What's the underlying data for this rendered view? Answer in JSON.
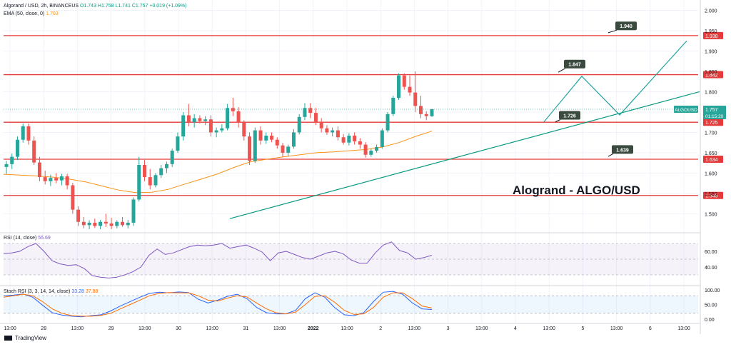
{
  "chart_data": {
    "type": "candlestick",
    "legend_main": {
      "symbol": "Algorand / USD, 2h, BINANCEUS",
      "open": "O1.743",
      "high": "H1.758",
      "low": "L1.741",
      "close": "C1.757",
      "change": "+0.019 (+1.09%)"
    },
    "legend_ema": {
      "label": "EMA (50, close, 0)",
      "value": "1.703"
    },
    "legend_rsi": {
      "label": "RSI (14, close)",
      "value": "55.69"
    },
    "legend_stoch": {
      "label": "Stoch RSI (3, 3, 14, 14, close)",
      "k": "33.28",
      "d": "37.88"
    },
    "annotation_title": "Alogrand - ALGO/USD",
    "price_axis": {
      "ylim": [
        1.455,
        2.015
      ],
      "ticks": [
        "2.000",
        "1.950",
        "1.900",
        "1.850",
        "1.800",
        "1.750",
        "1.700",
        "1.650",
        "1.600",
        "1.550",
        "1.500"
      ],
      "tick_values": [
        2.0,
        1.95,
        1.9,
        1.85,
        1.8,
        1.75,
        1.7,
        1.65,
        1.6,
        1.55,
        1.5
      ]
    },
    "horizontal_levels": [
      {
        "value": 1.938,
        "label": "1.938"
      },
      {
        "value": 1.842,
        "label": "1.842"
      },
      {
        "value": 1.725,
        "label": "1.725"
      },
      {
        "value": 1.634,
        "label": "1.634"
      },
      {
        "value": 1.545,
        "label": "1.545"
      }
    ],
    "price_callouts": [
      "1.940",
      "1.847",
      "1.726",
      "1.639"
    ],
    "current_price": {
      "symbol": "ALGOUSD",
      "value": 1.757,
      "label": "1.757",
      "countdown": "01:15:20"
    },
    "x_labels": [
      "13:00",
      "28",
      "13:00",
      "29",
      "13:00",
      "30",
      "13:00",
      "31",
      "13:00",
      "2022",
      "13:00",
      "2",
      "13:00",
      "3",
      "13:00",
      "4",
      "13:00",
      "5",
      "13:00",
      "6",
      "13:00"
    ],
    "rsi_axis": {
      "ticks": [
        "60.00",
        "40.00"
      ],
      "tick_values": [
        60,
        40
      ],
      "band": [
        70,
        30
      ]
    },
    "stoch_axis": {
      "ticks": [
        "100.00",
        "50.00",
        "0.00"
      ],
      "tick_values": [
        100,
        50,
        0
      ],
      "band": [
        80,
        20
      ]
    },
    "candles": [
      [
        1.615,
        1.63,
        1.598,
        1.622
      ],
      [
        1.622,
        1.648,
        1.61,
        1.64
      ],
      [
        1.64,
        1.69,
        1.632,
        1.682
      ],
      [
        1.682,
        1.722,
        1.675,
        1.715
      ],
      [
        1.715,
        1.722,
        1.67,
        1.68
      ],
      [
        1.68,
        1.69,
        1.62,
        1.626
      ],
      [
        1.626,
        1.64,
        1.58,
        1.59
      ],
      [
        1.59,
        1.606,
        1.572,
        1.58
      ],
      [
        1.58,
        1.596,
        1.568,
        1.588
      ],
      [
        1.588,
        1.6,
        1.575,
        1.582
      ],
      [
        1.582,
        1.598,
        1.57,
        1.592
      ],
      [
        1.592,
        1.598,
        1.56,
        1.57
      ],
      [
        1.57,
        1.576,
        1.5,
        1.51
      ],
      [
        1.51,
        1.518,
        1.47,
        1.48
      ],
      [
        1.48,
        1.492,
        1.464,
        1.472
      ],
      [
        1.472,
        1.484,
        1.462,
        1.478
      ],
      [
        1.478,
        1.488,
        1.465,
        1.47
      ],
      [
        1.47,
        1.485,
        1.462,
        1.48
      ],
      [
        1.48,
        1.5,
        1.468,
        1.476
      ],
      [
        1.476,
        1.49,
        1.462,
        1.47
      ],
      [
        1.47,
        1.484,
        1.464,
        1.48
      ],
      [
        1.48,
        1.492,
        1.468,
        1.472
      ],
      [
        1.472,
        1.485,
        1.464,
        1.478
      ],
      [
        1.478,
        1.54,
        1.47,
        1.535
      ],
      [
        1.535,
        1.64,
        1.53,
        1.62
      ],
      [
        1.62,
        1.632,
        1.58,
        1.59
      ],
      [
        1.59,
        1.61,
        1.56,
        1.57
      ],
      [
        1.57,
        1.6,
        1.565,
        1.595
      ],
      [
        1.595,
        1.62,
        1.588,
        1.612
      ],
      [
        1.612,
        1.628,
        1.6,
        1.622
      ],
      [
        1.622,
        1.66,
        1.615,
        1.655
      ],
      [
        1.655,
        1.7,
        1.65,
        1.69
      ],
      [
        1.69,
        1.75,
        1.68,
        1.742
      ],
      [
        1.742,
        1.77,
        1.715,
        1.725
      ],
      [
        1.725,
        1.745,
        1.712,
        1.735
      ],
      [
        1.735,
        1.742,
        1.722,
        1.728
      ],
      [
        1.728,
        1.74,
        1.718,
        1.732
      ],
      [
        1.732,
        1.742,
        1.69,
        1.7
      ],
      [
        1.7,
        1.712,
        1.688,
        1.705
      ],
      [
        1.705,
        1.72,
        1.7,
        1.71
      ],
      [
        1.71,
        1.77,
        1.705,
        1.76
      ],
      [
        1.76,
        1.785,
        1.74,
        1.752
      ],
      [
        1.752,
        1.762,
        1.712,
        1.725
      ],
      [
        1.725,
        1.73,
        1.68,
        1.69
      ],
      [
        1.69,
        1.7,
        1.62,
        1.63
      ],
      [
        1.63,
        1.712,
        1.625,
        1.705
      ],
      [
        1.705,
        1.715,
        1.67,
        1.68
      ],
      [
        1.68,
        1.7,
        1.672,
        1.692
      ],
      [
        1.692,
        1.7,
        1.676,
        1.682
      ],
      [
        1.682,
        1.688,
        1.66,
        1.668
      ],
      [
        1.668,
        1.674,
        1.64,
        1.65
      ],
      [
        1.65,
        1.67,
        1.642,
        1.665
      ],
      [
        1.665,
        1.708,
        1.66,
        1.7
      ],
      [
        1.7,
        1.745,
        1.695,
        1.738
      ],
      [
        1.738,
        1.772,
        1.73,
        1.76
      ],
      [
        1.76,
        1.772,
        1.735,
        1.748
      ],
      [
        1.748,
        1.76,
        1.718,
        1.725
      ],
      [
        1.725,
        1.735,
        1.7,
        1.71
      ],
      [
        1.71,
        1.718,
        1.694,
        1.7
      ],
      [
        1.7,
        1.712,
        1.69,
        1.705
      ],
      [
        1.705,
        1.715,
        1.68,
        1.688
      ],
      [
        1.688,
        1.696,
        1.67,
        1.675
      ],
      [
        1.675,
        1.698,
        1.668,
        1.692
      ],
      [
        1.692,
        1.7,
        1.67,
        1.678
      ],
      [
        1.678,
        1.686,
        1.66,
        1.67
      ],
      [
        1.67,
        1.676,
        1.638,
        1.645
      ],
      [
        1.645,
        1.66,
        1.64,
        1.655
      ],
      [
        1.655,
        1.67,
        1.65,
        1.664
      ],
      [
        1.664,
        1.71,
        1.66,
        1.705
      ],
      [
        1.705,
        1.75,
        1.7,
        1.745
      ],
      [
        1.745,
        1.79,
        1.74,
        1.785
      ],
      [
        1.785,
        1.845,
        1.78,
        1.84
      ],
      [
        1.84,
        1.845,
        1.805,
        1.812
      ],
      [
        1.812,
        1.84,
        1.79,
        1.798
      ],
      [
        1.798,
        1.85,
        1.75,
        1.765
      ],
      [
        1.765,
        1.79,
        1.735,
        1.745
      ],
      [
        1.745,
        1.752,
        1.73,
        1.74
      ],
      [
        1.74,
        1.758,
        1.738,
        1.757
      ]
    ],
    "ema50": [
      1.597,
      1.595,
      1.593,
      1.59,
      1.585,
      1.578,
      1.568,
      1.558,
      1.552,
      1.553,
      1.56,
      1.573,
      1.585,
      1.598,
      1.614,
      1.628,
      1.634,
      1.64,
      1.645,
      1.65,
      1.652,
      1.655,
      1.658,
      1.664,
      1.675,
      1.69,
      1.703
    ],
    "rsi": [
      57,
      58,
      60,
      66,
      70,
      60,
      48,
      44,
      42,
      43,
      38,
      29,
      27,
      26,
      27,
      30,
      34,
      40,
      55,
      63,
      56,
      58,
      62,
      66,
      68,
      67,
      68,
      70,
      64,
      66,
      68,
      64,
      59,
      48,
      58,
      60,
      56,
      52,
      50,
      54,
      58,
      60,
      57,
      49,
      45,
      45,
      58,
      68,
      72,
      61,
      58,
      50,
      52,
      55
    ],
    "stoch_k": [
      80,
      82,
      86,
      75,
      48,
      22,
      14,
      10,
      8,
      12,
      15,
      28,
      45,
      60,
      75,
      88,
      92,
      90,
      93,
      91,
      68,
      55,
      65,
      78,
      85,
      70,
      40,
      22,
      18,
      18,
      30,
      70,
      90,
      75,
      40,
      15,
      12,
      22,
      60,
      92,
      95,
      85,
      55,
      35,
      33
    ],
    "stoch_d": [
      75,
      80,
      85,
      80,
      60,
      35,
      20,
      12,
      10,
      10,
      13,
      20,
      35,
      50,
      65,
      80,
      88,
      91,
      90,
      90,
      80,
      65,
      62,
      72,
      80,
      76,
      55,
      35,
      22,
      18,
      24,
      50,
      78,
      80,
      58,
      30,
      16,
      18,
      40,
      75,
      90,
      90,
      70,
      45,
      38
    ]
  }
}
